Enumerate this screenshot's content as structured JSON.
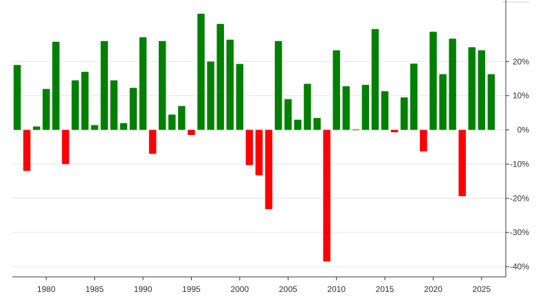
{
  "chart_data": {
    "type": "bar",
    "title": "",
    "xlabel": "",
    "ylabel": "",
    "x": [
      1977,
      1978,
      1979,
      1980,
      1981,
      1982,
      1983,
      1984,
      1985,
      1986,
      1987,
      1988,
      1989,
      1990,
      1991,
      1992,
      1993,
      1994,
      1995,
      1996,
      1997,
      1998,
      1999,
      2000,
      2001,
      2002,
      2003,
      2004,
      2005,
      2006,
      2007,
      2008,
      2009,
      2010,
      2011,
      2012,
      2013,
      2014,
      2015,
      2016,
      2017,
      2018,
      2019,
      2020,
      2021,
      2022,
      2023,
      2024,
      2025,
      2026
    ],
    "values": [
      19,
      -12,
      1,
      12,
      25.8,
      -10,
      14.5,
      17,
      1.4,
      26,
      14.5,
      2,
      12.3,
      27.1,
      -7,
      26,
      4.5,
      7,
      -1.5,
      34,
      20,
      31,
      26.4,
      19.3,
      -10.3,
      -13.3,
      -23.2,
      26,
      9,
      3,
      13.5,
      3.5,
      -38.5,
      23.3,
      12.8,
      0,
      13.2,
      29.5,
      11.3,
      -0.7,
      9.5,
      19.4,
      -6.3,
      28.7,
      16.3,
      26.7,
      -19.4,
      24.2,
      23.3,
      16.3
    ],
    "x_ticks": [
      "1980",
      "1985",
      "1990",
      "1995",
      "2000",
      "2005",
      "2010",
      "2015",
      "2020",
      "2025"
    ],
    "y_ticks": [
      "20%",
      "10%",
      "0%",
      "-10%",
      "-20%",
      "-30%",
      "-40%"
    ],
    "y_tick_values": [
      20,
      10,
      0,
      -10,
      -20,
      -30,
      -40
    ],
    "xlim": [
      1976.5,
      2027.5
    ],
    "ylim": [
      -43,
      37
    ],
    "grid": true,
    "legend": "none",
    "colors": {
      "positive": "#008000",
      "negative": "#ff0000",
      "grid": "#e6e6e6",
      "axis": "#333333"
    }
  }
}
